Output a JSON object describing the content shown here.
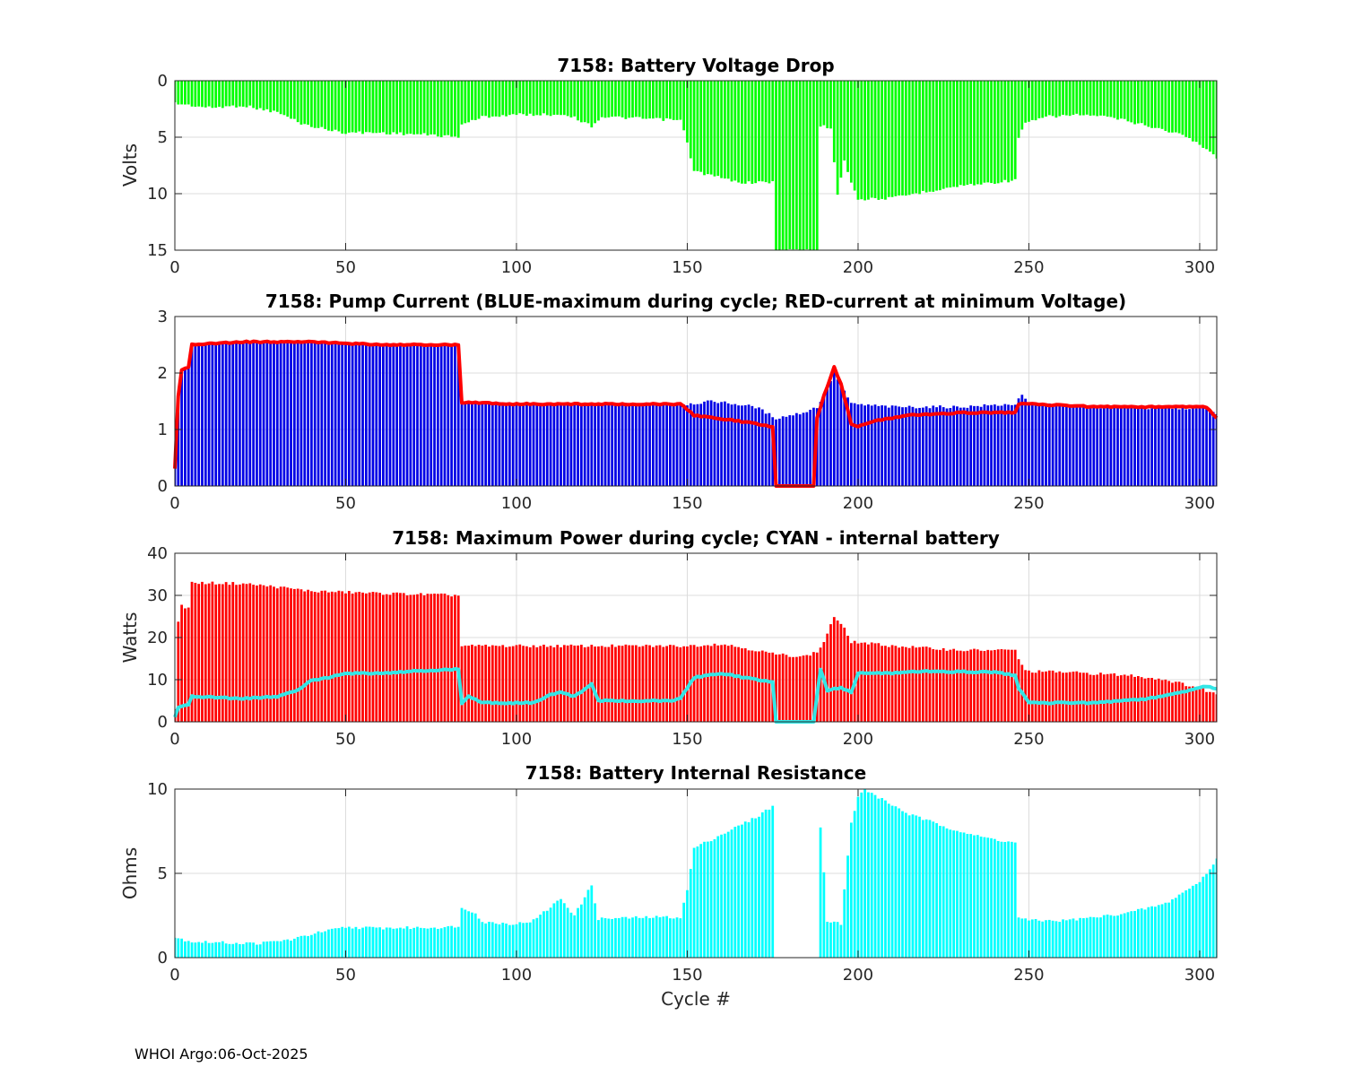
{
  "footer": "WHOI Argo:06-Oct-2025",
  "colors": {
    "green": "#00ff00",
    "blue": "#0000e6",
    "red": "#ff0000",
    "cyan": "#00ffff",
    "cyan_line": "#33e6e6",
    "red_line": "#ff0000"
  },
  "chart_data": [
    {
      "type": "bar",
      "title": "7158: Battery Voltage Drop",
      "xlabel": "",
      "ylabel": "Volts",
      "xlim": [
        0,
        305
      ],
      "ylim": [
        0,
        15
      ],
      "y_reversed": true,
      "xticks": [
        "0",
        "50",
        "100",
        "150",
        "200",
        "250",
        "300"
      ],
      "yticks": [
        "0",
        "5",
        "10",
        "15"
      ],
      "grid": true,
      "series": [
        {
          "name": "Voltage drop",
          "color": "green",
          "breakpoints": [
            [
              0,
              2.0
            ],
            [
              10,
              2.4
            ],
            [
              20,
              2.2
            ],
            [
              30,
              2.8
            ],
            [
              38,
              3.9
            ],
            [
              46,
              4.4
            ],
            [
              50,
              4.6
            ],
            [
              60,
              4.6
            ],
            [
              75,
              4.8
            ],
            [
              83,
              5.0
            ],
            [
              84,
              3.8
            ],
            [
              88,
              3.5
            ],
            [
              90,
              3.2
            ],
            [
              100,
              3.0
            ],
            [
              115,
              3.0
            ],
            [
              122,
              4.0
            ],
            [
              125,
              3.2
            ],
            [
              148,
              3.5
            ],
            [
              150,
              5.5
            ],
            [
              152,
              8.0
            ],
            [
              165,
              9.0
            ],
            [
              175,
              9.0
            ],
            [
              176,
              15.0
            ],
            [
              188,
              15.0
            ],
            [
              189,
              4.0
            ],
            [
              192,
              4.2
            ],
            [
              194,
              10.0
            ],
            [
              196,
              7.0
            ],
            [
              198,
              9.0
            ],
            [
              200,
              10.5
            ],
            [
              210,
              10.4
            ],
            [
              220,
              9.8
            ],
            [
              230,
              9.3
            ],
            [
              240,
              9.0
            ],
            [
              246,
              8.8
            ],
            [
              247,
              5.0
            ],
            [
              249,
              3.8
            ],
            [
              255,
              3.2
            ],
            [
              265,
              3.0
            ],
            [
              275,
              3.3
            ],
            [
              285,
              4.0
            ],
            [
              295,
              4.8
            ],
            [
              302,
              6.0
            ],
            [
              305,
              6.8
            ]
          ]
        }
      ]
    },
    {
      "type": "bar+line",
      "title": "7158: Pump Current (BLUE-maximum during cycle; RED-current at minimum Voltage)",
      "xlabel": "",
      "ylabel": "",
      "xlim": [
        0,
        305
      ],
      "ylim": [
        0,
        3
      ],
      "xticks": [
        "0",
        "50",
        "100",
        "150",
        "200",
        "250",
        "300"
      ],
      "yticks": [
        "0",
        "1",
        "2",
        "3"
      ],
      "grid": true,
      "series": [
        {
          "name": "BLUE-maximum during cycle",
          "color": "blue",
          "kind": "bar",
          "breakpoints": [
            [
              0,
              0.4
            ],
            [
              1,
              1.6
            ],
            [
              2,
              2.0
            ],
            [
              4,
              2.1
            ],
            [
              5,
              2.5
            ],
            [
              20,
              2.55
            ],
            [
              40,
              2.55
            ],
            [
              60,
              2.5
            ],
            [
              83,
              2.5
            ],
            [
              84,
              1.48
            ],
            [
              100,
              1.45
            ],
            [
              120,
              1.45
            ],
            [
              150,
              1.45
            ],
            [
              158,
              1.5
            ],
            [
              170,
              1.4
            ],
            [
              176,
              1.2
            ],
            [
              184,
              1.3
            ],
            [
              188,
              1.4
            ],
            [
              190,
              1.6
            ],
            [
              193,
              2.0
            ],
            [
              195,
              1.8
            ],
            [
              198,
              1.45
            ],
            [
              210,
              1.4
            ],
            [
              230,
              1.4
            ],
            [
              246,
              1.45
            ],
            [
              248,
              1.6
            ],
            [
              250,
              1.45
            ],
            [
              270,
              1.4
            ],
            [
              290,
              1.38
            ],
            [
              302,
              1.38
            ],
            [
              305,
              1.3
            ]
          ]
        },
        {
          "name": "RED-current at minimum Voltage",
          "color": "red_line",
          "kind": "line",
          "breakpoints": [
            [
              0,
              0.3
            ],
            [
              1,
              1.6
            ],
            [
              2,
              2.05
            ],
            [
              4,
              2.1
            ],
            [
              5,
              2.5
            ],
            [
              20,
              2.55
            ],
            [
              40,
              2.55
            ],
            [
              60,
              2.5
            ],
            [
              83,
              2.5
            ],
            [
              84,
              1.48
            ],
            [
              100,
              1.45
            ],
            [
              120,
              1.45
            ],
            [
              148,
              1.45
            ],
            [
              152,
              1.25
            ],
            [
              165,
              1.15
            ],
            [
              175,
              1.05
            ],
            [
              176,
              0.0
            ],
            [
              187,
              0.0
            ],
            [
              188,
              1.2
            ],
            [
              190,
              1.6
            ],
            [
              193,
              2.1
            ],
            [
              195,
              1.8
            ],
            [
              198,
              1.1
            ],
            [
              200,
              1.05
            ],
            [
              205,
              1.15
            ],
            [
              215,
              1.25
            ],
            [
              230,
              1.3
            ],
            [
              246,
              1.3
            ],
            [
              247,
              1.45
            ],
            [
              250,
              1.45
            ],
            [
              270,
              1.4
            ],
            [
              290,
              1.4
            ],
            [
              302,
              1.4
            ],
            [
              305,
              1.2
            ]
          ]
        }
      ]
    },
    {
      "type": "bar+line",
      "title": "7158: Maximum Power during cycle; CYAN - internal battery",
      "xlabel": "",
      "ylabel": "Watts",
      "xlim": [
        0,
        305
      ],
      "ylim": [
        0,
        40
      ],
      "xticks": [
        "0",
        "50",
        "100",
        "150",
        "200",
        "250",
        "300"
      ],
      "yticks": [
        "0",
        "10",
        "20",
        "30",
        "40"
      ],
      "grid": true,
      "series": [
        {
          "name": "Maximum Power",
          "color": "red",
          "kind": "bar",
          "breakpoints": [
            [
              0,
              3.0
            ],
            [
              1,
              24.0
            ],
            [
              2,
              27.5
            ],
            [
              4,
              27.0
            ],
            [
              5,
              33.0
            ],
            [
              20,
              32.8
            ],
            [
              30,
              32.0
            ],
            [
              40,
              31.0
            ],
            [
              60,
              30.5
            ],
            [
              83,
              30.0
            ],
            [
              84,
              18.0
            ],
            [
              100,
              18.0
            ],
            [
              150,
              18.0
            ],
            [
              160,
              18.5
            ],
            [
              170,
              17.0
            ],
            [
              176,
              16.0
            ],
            [
              184,
              15.5
            ],
            [
              188,
              16.5
            ],
            [
              190,
              19.0
            ],
            [
              193,
              25.0
            ],
            [
              196,
              22.0
            ],
            [
              198,
              19.0
            ],
            [
              210,
              18.0
            ],
            [
              230,
              17.0
            ],
            [
              246,
              17.0
            ],
            [
              247,
              15.0
            ],
            [
              249,
              12.0
            ],
            [
              260,
              11.8
            ],
            [
              280,
              11.0
            ],
            [
              290,
              10.0
            ],
            [
              300,
              8.0
            ],
            [
              305,
              6.5
            ]
          ]
        },
        {
          "name": "CYAN - internal battery",
          "color": "cyan_line",
          "kind": "line",
          "breakpoints": [
            [
              0,
              1.0
            ],
            [
              1,
              3.5
            ],
            [
              4,
              4.0
            ],
            [
              5,
              6.0
            ],
            [
              20,
              5.5
            ],
            [
              30,
              6.0
            ],
            [
              36,
              7.5
            ],
            [
              40,
              9.8
            ],
            [
              45,
              10.5
            ],
            [
              50,
              11.5
            ],
            [
              60,
              11.5
            ],
            [
              70,
              12.0
            ],
            [
              83,
              12.5
            ],
            [
              84,
              4.5
            ],
            [
              86,
              6.0
            ],
            [
              90,
              4.5
            ],
            [
              105,
              4.5
            ],
            [
              110,
              6.5
            ],
            [
              113,
              7.0
            ],
            [
              117,
              6.0
            ],
            [
              122,
              9.0
            ],
            [
              124,
              5.0
            ],
            [
              145,
              5.0
            ],
            [
              148,
              5.5
            ],
            [
              152,
              10.5
            ],
            [
              160,
              11.5
            ],
            [
              170,
              10.0
            ],
            [
              175,
              9.5
            ],
            [
              176,
              0.0
            ],
            [
              187,
              0.0
            ],
            [
              189,
              12.5
            ],
            [
              191,
              7.5
            ],
            [
              195,
              8.0
            ],
            [
              198,
              7.0
            ],
            [
              200,
              11.5
            ],
            [
              210,
              11.5
            ],
            [
              220,
              12.0
            ],
            [
              240,
              11.8
            ],
            [
              246,
              11.0
            ],
            [
              247,
              8.0
            ],
            [
              250,
              4.5
            ],
            [
              270,
              4.5
            ],
            [
              285,
              5.5
            ],
            [
              295,
              7.0
            ],
            [
              302,
              8.5
            ],
            [
              305,
              7.8
            ]
          ]
        }
      ]
    },
    {
      "type": "bar",
      "title": "7158: Battery Internal Resistance",
      "xlabel": "Cycle #",
      "ylabel": "Ohms",
      "xlim": [
        0,
        305
      ],
      "ylim": [
        0,
        10
      ],
      "xticks": [
        "0",
        "50",
        "100",
        "150",
        "200",
        "250",
        "300"
      ],
      "yticks": [
        "0",
        "5",
        "10"
      ],
      "grid": true,
      "series": [
        {
          "name": "Internal Resistance",
          "color": "cyan",
          "breakpoints": [
            [
              0,
              1.2
            ],
            [
              5,
              0.95
            ],
            [
              20,
              0.85
            ],
            [
              25,
              0.85
            ],
            [
              35,
              1.1
            ],
            [
              40,
              1.4
            ],
            [
              50,
              1.8
            ],
            [
              60,
              1.75
            ],
            [
              80,
              1.8
            ],
            [
              83,
              1.9
            ],
            [
              84,
              2.9
            ],
            [
              88,
              2.7
            ],
            [
              90,
              2.1
            ],
            [
              100,
              2.0
            ],
            [
              105,
              2.2
            ],
            [
              110,
              3.0
            ],
            [
              113,
              3.5
            ],
            [
              117,
              2.5
            ],
            [
              122,
              4.3
            ],
            [
              124,
              2.3
            ],
            [
              140,
              2.4
            ],
            [
              148,
              2.4
            ],
            [
              150,
              4.0
            ],
            [
              152,
              6.5
            ],
            [
              160,
              7.3
            ],
            [
              170,
              8.3
            ],
            [
              175,
              9.0
            ],
            [
              176,
              0.0
            ],
            [
              188,
              0.0
            ],
            [
              189,
              7.8
            ],
            [
              191,
              2.2
            ],
            [
              195,
              2.0
            ],
            [
              198,
              8.0
            ],
            [
              200,
              9.5
            ],
            [
              202,
              10.0
            ],
            [
              206,
              9.5
            ],
            [
              215,
              8.5
            ],
            [
              225,
              7.8
            ],
            [
              235,
              7.2
            ],
            [
              246,
              6.8
            ],
            [
              247,
              2.4
            ],
            [
              250,
              2.2
            ],
            [
              260,
              2.2
            ],
            [
              270,
              2.4
            ],
            [
              280,
              2.7
            ],
            [
              290,
              3.2
            ],
            [
              300,
              4.5
            ],
            [
              305,
              5.8
            ]
          ]
        }
      ]
    }
  ]
}
